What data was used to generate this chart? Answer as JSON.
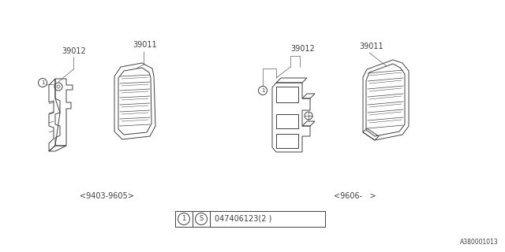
{
  "bg_color": "#ffffff",
  "line_color": "#404040",
  "fig_width": 6.4,
  "fig_height": 3.2,
  "dpi": 100,
  "part_label_39012_left": "39012",
  "part_label_39011_left": "39011",
  "part_label_39012_right": "39012",
  "part_label_39011_right": "39011",
  "date_left": "<9403-9605>",
  "date_right": "<9606-   >",
  "part_number_text": "047406123(2 )",
  "diagram_id": "A380001013",
  "circle_label": "1",
  "S_label": "S"
}
